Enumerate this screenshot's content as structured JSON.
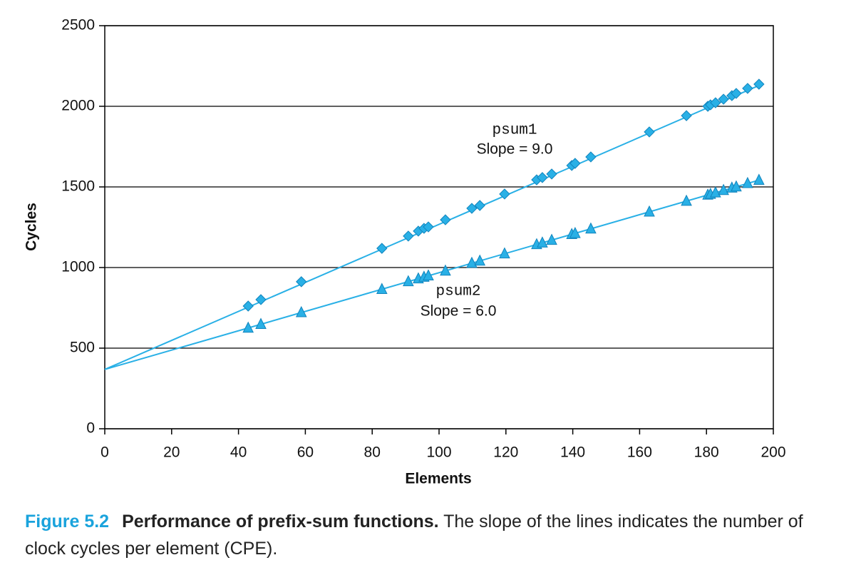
{
  "chart_data": {
    "type": "scatter",
    "xlabel": "Elements",
    "ylabel": "Cycles",
    "xlim": [
      0,
      200
    ],
    "xticks": [
      0,
      20,
      40,
      60,
      80,
      100,
      120,
      140,
      160,
      180,
      200
    ],
    "ylim": [
      0,
      2500
    ],
    "yticks": [
      0,
      500,
      1000,
      1500,
      2000,
      2500
    ],
    "grid": true,
    "x": [
      42.9,
      46.7,
      58.8,
      82.9,
      90.8,
      93.8,
      95.5,
      96.8,
      101.9,
      109.8,
      112.2,
      119.6,
      129.2,
      130.9,
      133.7,
      139.7,
      140.7,
      145.4,
      162.9,
      174.0,
      180.4,
      181.2,
      182.7,
      185.1,
      187.6,
      188.9,
      192.3,
      195.7
    ],
    "series": [
      {
        "name": "psum1",
        "color": "#29b0e6",
        "marker": "diamond",
        "values": [
          761,
          801,
          912,
          1119,
          1195,
          1226,
          1243,
          1252,
          1296,
          1367,
          1385,
          1456,
          1544,
          1558,
          1580,
          1633,
          1646,
          1686,
          1841,
          1942,
          2000,
          2009,
          2022,
          2044,
          2066,
          2080,
          2111,
          2137
        ]
      },
      {
        "name": "psum2",
        "color": "#29b0e6",
        "marker": "triangle",
        "values": [
          625,
          648,
          721,
          865,
          913,
          931,
          941,
          949,
          979,
          1027,
          1041,
          1086,
          1143,
          1153,
          1170,
          1206,
          1212,
          1240,
          1345,
          1412,
          1450,
          1455,
          1464,
          1479,
          1494,
          1501,
          1522,
          1542
        ]
      }
    ],
    "fits": [
      {
        "x": [
          0,
          195.7
        ],
        "values": [
          368,
          2129
        ]
      },
      {
        "x": [
          0,
          195.7
        ],
        "values": [
          368,
          1542
        ]
      }
    ],
    "annotations": [
      {
        "name": "psum1",
        "text": "Slope = 9.0"
      },
      {
        "name": "psum2",
        "text": "Slope = 6.0"
      }
    ]
  },
  "caption": {
    "label": "Figure 5.2",
    "heading": "Performance of prefix-sum functions.",
    "text": "The slope of the lines indicates the number of clock cycles per element (CPE)."
  }
}
